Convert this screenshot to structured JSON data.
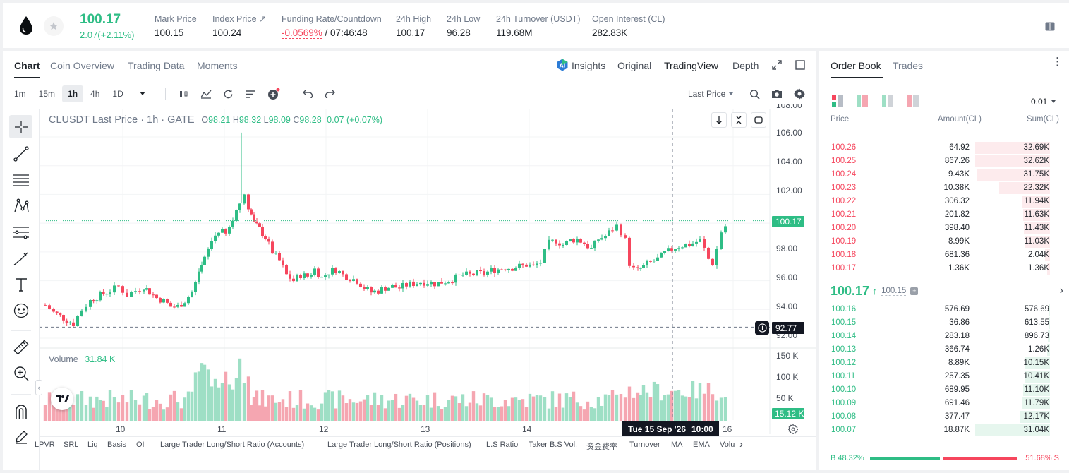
{
  "header": {
    "price": "100.17",
    "change": "2.07(+2.11%)",
    "stats": [
      {
        "label": "Mark Price",
        "value": "100.15"
      },
      {
        "label": "Index Price ↗",
        "value": "100.24"
      },
      {
        "label": "Funding Rate/Countdown",
        "value": "-0.0569%",
        "value2": " / 07:46:48"
      },
      {
        "label": "24h High",
        "value": "100.17"
      },
      {
        "label": "24h Low",
        "value": "96.28"
      },
      {
        "label": "24h Turnover (USDT)",
        "value": "119.68M"
      },
      {
        "label": "Open Interest (CL)",
        "value": "282.83K"
      }
    ]
  },
  "chart_tabs": [
    "Chart",
    "Coin Overview",
    "Trading Data",
    "Moments"
  ],
  "view_tabs": [
    "Insights",
    "Original",
    "TradingView",
    "Depth"
  ],
  "timeframes": [
    "1m",
    "15m",
    "1h",
    "4h",
    "1D"
  ],
  "last_price_select": "Last Price",
  "legend": {
    "symbol": "CLUSDT Last Price · 1h · GATE",
    "o_label": "O",
    "o": "98.21",
    "h_label": "H",
    "h": "98.32",
    "l_label": "L",
    "l": "98.09",
    "c_label": "C",
    "c": "98.28",
    "change": "0.07 (+0.07%)"
  },
  "volume_legend": {
    "label": "Volume",
    "value": "31.84 K"
  },
  "price_axis": [
    "106.00",
    "104.00",
    "102.00",
    "100.00",
    "98.00",
    "96.00",
    "94.00",
    "92.00"
  ],
  "price_axis_top_partial": "108.00",
  "volume_axis": [
    "150 K",
    "100 K",
    "50 K"
  ],
  "price_tag": "100.17",
  "crosshair_price": "92.77",
  "volume_tag": "15.12 K",
  "x_axis": [
    "10",
    "11",
    "12",
    "13",
    "14",
    "16"
  ],
  "crosshair_time": "Tue 15 Sep '26",
  "crosshair_hour": "10:00",
  "indicators": [
    "LPVR",
    "SRL",
    "Liq",
    "Basis",
    "OI",
    "Large Trader Long/Short Ratio (Accounts)",
    "Large Trader Long/Short Ratio (Positions)",
    "L.S Ratio",
    "Taker B.S Vol.",
    "资金费率",
    "Turnover",
    "MA",
    "EMA",
    "Volu"
  ],
  "order_book": {
    "tabs": [
      "Order Book",
      "Trades"
    ],
    "tick": "0.01",
    "col_price": "Price",
    "col_amount": "Amount(CL)",
    "col_sum": "Sum(CL)",
    "asks": [
      {
        "price": "100.26",
        "amount": "64.92",
        "sum": "32.69K",
        "depth": 1.0
      },
      {
        "price": "100.25",
        "amount": "867.26",
        "sum": "32.62K",
        "depth": 0.998
      },
      {
        "price": "100.24",
        "amount": "9.43K",
        "sum": "31.75K",
        "depth": 0.971
      },
      {
        "price": "100.23",
        "amount": "10.38K",
        "sum": "22.32K",
        "depth": 0.683
      },
      {
        "price": "100.22",
        "amount": "306.32",
        "sum": "11.94K",
        "depth": 0.365
      },
      {
        "price": "100.21",
        "amount": "201.82",
        "sum": "11.63K",
        "depth": 0.356
      },
      {
        "price": "100.20",
        "amount": "398.40",
        "sum": "11.43K",
        "depth": 0.35
      },
      {
        "price": "100.19",
        "amount": "8.99K",
        "sum": "11.03K",
        "depth": 0.337
      },
      {
        "price": "100.18",
        "amount": "681.36",
        "sum": "2.04K",
        "depth": 0.062
      },
      {
        "price": "100.17",
        "amount": "1.36K",
        "sum": "1.36K",
        "depth": 0.042
      }
    ],
    "mid_price": "100.17",
    "mid_arrow": "↑",
    "mark_price": "100.15",
    "bids": [
      {
        "price": "100.16",
        "amount": "576.69",
        "sum": "576.69",
        "depth": 0.019
      },
      {
        "price": "100.15",
        "amount": "36.86",
        "sum": "613.55",
        "depth": 0.02
      },
      {
        "price": "100.14",
        "amount": "283.18",
        "sum": "896.73",
        "depth": 0.029
      },
      {
        "price": "100.13",
        "amount": "366.74",
        "sum": "1.26K",
        "depth": 0.041
      },
      {
        "price": "100.12",
        "amount": "8.89K",
        "sum": "10.15K",
        "depth": 0.327
      },
      {
        "price": "100.11",
        "amount": "257.35",
        "sum": "10.41K",
        "depth": 0.336
      },
      {
        "price": "100.10",
        "amount": "689.95",
        "sum": "11.10K",
        "depth": 0.358
      },
      {
        "price": "100.09",
        "amount": "691.46",
        "sum": "11.79K",
        "depth": 0.38
      },
      {
        "price": "100.08",
        "amount": "377.47",
        "sum": "12.17K",
        "depth": 0.393
      },
      {
        "price": "100.07",
        "amount": "18.87K",
        "sum": "31.04K",
        "depth": 1.0
      }
    ],
    "buy_ratio": "B 48.32%",
    "sell_ratio": "51.68% S",
    "buy_fraction": 0.4832
  },
  "colors": {
    "up": "#2ebd85",
    "down": "#f6465d",
    "up_vol": "#9edfc5",
    "down_vol": "#f5a6b1"
  }
}
